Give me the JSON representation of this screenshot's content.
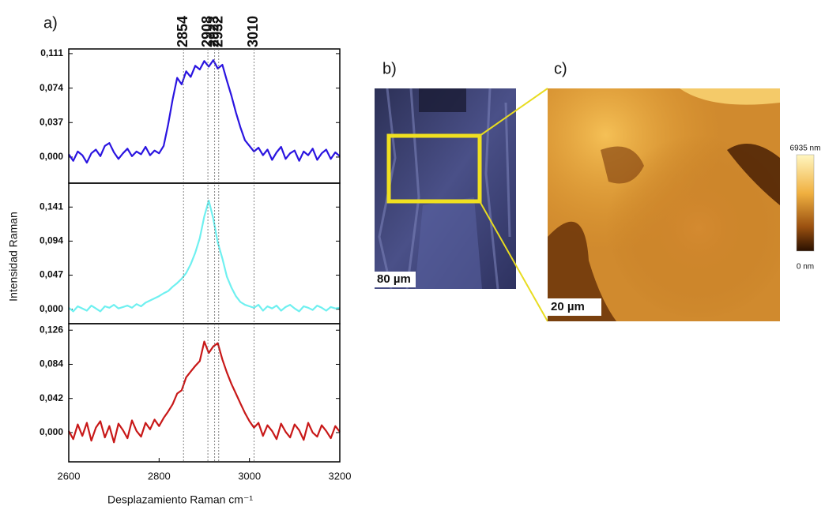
{
  "chart_data": {
    "type": "line",
    "panel_label": "a)",
    "xlabel": "Desplazamiento Raman cm⁻¹",
    "ylabel": "Intensidad  Raman",
    "x": [
      2600,
      2610,
      2620,
      2630,
      2640,
      2650,
      2660,
      2670,
      2680,
      2690,
      2700,
      2710,
      2720,
      2730,
      2740,
      2750,
      2760,
      2770,
      2780,
      2790,
      2800,
      2810,
      2820,
      2830,
      2840,
      2850,
      2860,
      2870,
      2880,
      2890,
      2900,
      2910,
      2920,
      2930,
      2940,
      2950,
      2960,
      2970,
      2980,
      2990,
      3000,
      3010,
      3020,
      3030,
      3040,
      3050,
      3060,
      3070,
      3080,
      3090,
      3100,
      3110,
      3120,
      3130,
      3140,
      3150,
      3160,
      3170,
      3180,
      3190,
      3200
    ],
    "xlim": [
      2600,
      3200
    ],
    "xticks": [
      2600,
      2800,
      3000,
      3200
    ],
    "vlines": [
      2854,
      2908,
      2923,
      2932,
      3010
    ],
    "series": [
      {
        "color": "#2a14e0",
        "ylim": [
          -0.028,
          0.116
        ],
        "yticks": [
          {
            "value": 0,
            "label": "0,000"
          },
          {
            "value": 0.037,
            "label": "0,037"
          },
          {
            "value": 0.074,
            "label": "0,074"
          },
          {
            "value": 0.111,
            "label": "0,111"
          }
        ],
        "values": [
          0.003,
          -0.004,
          0.006,
          0.002,
          -0.006,
          0.004,
          0.008,
          0.001,
          0.012,
          0.015,
          0.005,
          -0.002,
          0.004,
          0.009,
          0.001,
          0.006,
          0.003,
          0.011,
          0.002,
          0.007,
          0.004,
          0.012,
          0.035,
          0.062,
          0.085,
          0.078,
          0.092,
          0.086,
          0.098,
          0.094,
          0.103,
          0.097,
          0.104,
          0.095,
          0.099,
          0.082,
          0.066,
          0.048,
          0.032,
          0.018,
          0.012,
          0.006,
          0.01,
          0.002,
          0.008,
          -0.003,
          0.005,
          0.011,
          -0.002,
          0.004,
          0.007,
          -0.004,
          0.006,
          0.002,
          0.009,
          -0.003,
          0.004,
          0.008,
          -0.002,
          0.005,
          0.001
        ]
      },
      {
        "color": "#6ff0f0",
        "ylim": [
          -0.02,
          0.174
        ],
        "yticks": [
          {
            "value": 0,
            "label": "0,000"
          },
          {
            "value": 0.047,
            "label": "0,047"
          },
          {
            "value": 0.094,
            "label": "0,094"
          },
          {
            "value": 0.141,
            "label": "0,141"
          }
        ],
        "values": [
          0.002,
          -0.003,
          0.004,
          0.001,
          -0.002,
          0.005,
          0.001,
          -0.003,
          0.004,
          0.002,
          0.006,
          0.001,
          0.003,
          0.005,
          0.002,
          0.007,
          0.004,
          0.009,
          0.012,
          0.015,
          0.018,
          0.022,
          0.025,
          0.031,
          0.036,
          0.042,
          0.05,
          0.062,
          0.078,
          0.098,
          0.128,
          0.15,
          0.125,
          0.092,
          0.07,
          0.045,
          0.03,
          0.018,
          0.01,
          0.006,
          0.004,
          0.002,
          0.006,
          -0.002,
          0.004,
          0.001,
          0.005,
          -0.002,
          0.003,
          0.006,
          0.001,
          -0.003,
          0.004,
          0.002,
          -0.001,
          0.005,
          0.002,
          -0.002,
          0.003,
          0.001,
          0.002
        ]
      },
      {
        "color": "#c81818",
        "ylim": [
          -0.036,
          0.134
        ],
        "yticks": [
          {
            "value": 0,
            "label": "0,000"
          },
          {
            "value": 0.042,
            "label": "0,042"
          },
          {
            "value": 0.084,
            "label": "0,084"
          },
          {
            "value": 0.126,
            "label": "0,126"
          }
        ],
        "values": [
          0.002,
          -0.008,
          0.01,
          -0.004,
          0.012,
          -0.01,
          0.006,
          0.014,
          -0.006,
          0.008,
          -0.012,
          0.011,
          0.003,
          -0.007,
          0.015,
          0.002,
          -0.005,
          0.012,
          0.004,
          0.016,
          0.008,
          0.018,
          0.026,
          0.035,
          0.048,
          0.052,
          0.068,
          0.075,
          0.082,
          0.088,
          0.112,
          0.098,
          0.106,
          0.11,
          0.09,
          0.074,
          0.06,
          0.048,
          0.036,
          0.024,
          0.014,
          0.006,
          0.012,
          -0.004,
          0.009,
          0.002,
          -0.008,
          0.011,
          0.001,
          -0.006,
          0.01,
          0.003,
          -0.009,
          0.012,
          0.0,
          -0.005,
          0.009,
          0.002,
          -0.007,
          0.008,
          0.001
        ]
      }
    ]
  },
  "images": {
    "b_label": "b)",
    "c_label": "c)",
    "b_scale": "80 µm",
    "c_scale": "20 µm",
    "colorbar_max": "6935 nm",
    "colorbar_min": "0 nm"
  }
}
